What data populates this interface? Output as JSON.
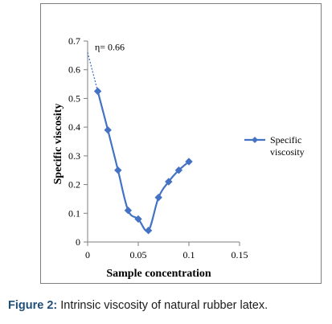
{
  "chart_data": {
    "type": "line",
    "title": "",
    "xlabel": "Sample concentration",
    "ylabel": "Specific viscosity",
    "xlim": [
      0,
      0.15
    ],
    "ylim": [
      0,
      0.7
    ],
    "x_ticks": [
      "0",
      "0.05",
      "0.1",
      "0.15"
    ],
    "y_ticks": [
      "0",
      "0.1",
      "0.2",
      "0.3",
      "0.4",
      "0.5",
      "0.6",
      "0.7"
    ],
    "grid": false,
    "legend_position": "right",
    "series": [
      {
        "name": "Specific viscosity",
        "legend_lines": [
          "Specific",
          "viscosity"
        ],
        "color": "#4472c4",
        "marker": "diamond",
        "x": [
          0.01,
          0.02,
          0.03,
          0.04,
          0.05,
          0.06,
          0.07,
          0.08,
          0.09,
          0.1
        ],
        "y": [
          0.525,
          0.39,
          0.25,
          0.11,
          0.08,
          0.04,
          0.155,
          0.21,
          0.25,
          0.28
        ]
      }
    ],
    "extrapolation": {
      "style": "dotted",
      "from": {
        "x": 0.0,
        "y": 0.66
      },
      "to": {
        "x": 0.01,
        "y": 0.525
      }
    },
    "annotation": {
      "text": "η= 0.66",
      "x": 0.0,
      "y": 0.66
    }
  },
  "caption": {
    "label": "Figure 2:",
    "text": " Intrinsic viscosity of natural rubber latex."
  }
}
